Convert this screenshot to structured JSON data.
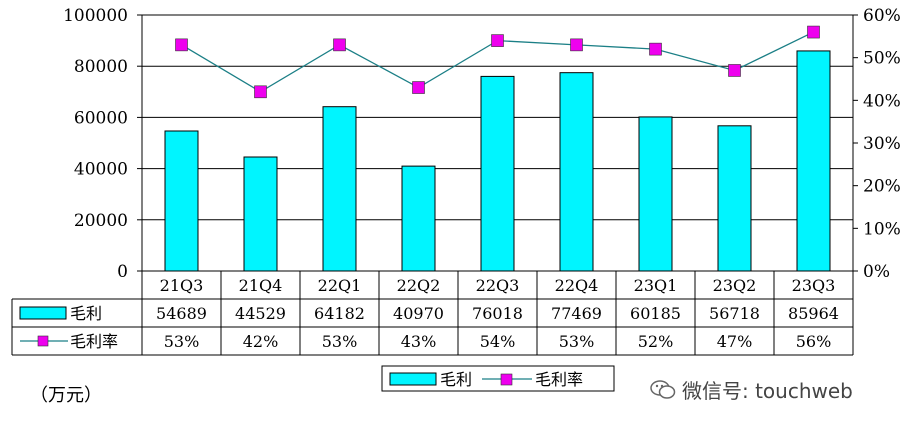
{
  "unit_note": "（万元）",
  "watermark": "微信号: touchweb",
  "chart_data": {
    "type": "bar",
    "categories": [
      "21Q3",
      "21Q4",
      "22Q1",
      "22Q2",
      "22Q3",
      "22Q4",
      "23Q1",
      "23Q2",
      "23Q3"
    ],
    "series": [
      {
        "name": "毛利",
        "type": "bar",
        "axis": "left",
        "color": "#00f5ff",
        "values": [
          54689,
          44529,
          64182,
          40970,
          76018,
          77469,
          60185,
          56718,
          85964
        ]
      },
      {
        "name": "毛利率",
        "type": "line",
        "axis": "right",
        "color": "#ee00ee",
        "line_color": "#1b7f86",
        "values": [
          53,
          42,
          53,
          43,
          54,
          53,
          52,
          47,
          56
        ],
        "labels": [
          "53%",
          "42%",
          "53%",
          "43%",
          "54%",
          "53%",
          "52%",
          "47%",
          "56%"
        ]
      }
    ],
    "y_left": {
      "lim": [
        0,
        100000
      ],
      "ticks": [
        "0",
        "20000",
        "40000",
        "60000",
        "80000",
        "100000"
      ]
    },
    "y_right": {
      "lim": [
        0,
        60
      ],
      "ticks": [
        "0%",
        "10%",
        "20%",
        "30%",
        "40%",
        "50%",
        "60%"
      ]
    },
    "table": {
      "row_labels": [
        "毛利",
        "毛利率"
      ]
    },
    "legend": {
      "position": "bottom",
      "items": [
        "毛利",
        "毛利率"
      ]
    },
    "grid": true
  }
}
